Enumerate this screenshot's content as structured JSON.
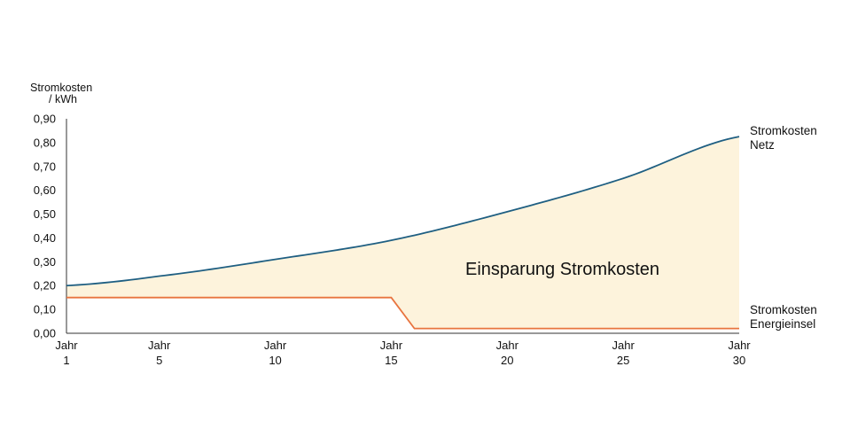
{
  "chart_data": {
    "type": "area",
    "ylabel_line1": "Stromkosten",
    "ylabel_line2": "/ kWh",
    "ylim": [
      0,
      0.9
    ],
    "yticks": [
      "0,00",
      "0,10",
      "0,20",
      "0,30",
      "0,40",
      "0,50",
      "0,60",
      "0,70",
      "0,80",
      "0,90"
    ],
    "xlim": [
      1,
      30
    ],
    "xticks": [
      {
        "value": 1,
        "line1": "Jahr",
        "line2": "1"
      },
      {
        "value": 5,
        "line1": "Jahr",
        "line2": "5"
      },
      {
        "value": 10,
        "line1": "Jahr",
        "line2": "10"
      },
      {
        "value": 15,
        "line1": "Jahr",
        "line2": "15"
      },
      {
        "value": 20,
        "line1": "Jahr",
        "line2": "20"
      },
      {
        "value": 25,
        "line1": "Jahr",
        "line2": "25"
      },
      {
        "value": 30,
        "line1": "Jahr",
        "line2": "30"
      }
    ],
    "series": [
      {
        "name_line1": "Stromkosten",
        "name_line2": "Netz",
        "color": "#1f5f82",
        "x": [
          1,
          5,
          10,
          15,
          20,
          25,
          30
        ],
        "values": [
          0.2,
          0.24,
          0.31,
          0.39,
          0.51,
          0.65,
          0.825
        ]
      },
      {
        "name_line1": "Stromkosten",
        "name_line2": "Energieinsel",
        "color": "#e8743f",
        "x": [
          1,
          15,
          16,
          30
        ],
        "values": [
          0.15,
          0.15,
          0.02,
          0.02
        ]
      }
    ],
    "fill_color": "#fdf3dc",
    "annotation": "Einsparung Stromkosten"
  }
}
